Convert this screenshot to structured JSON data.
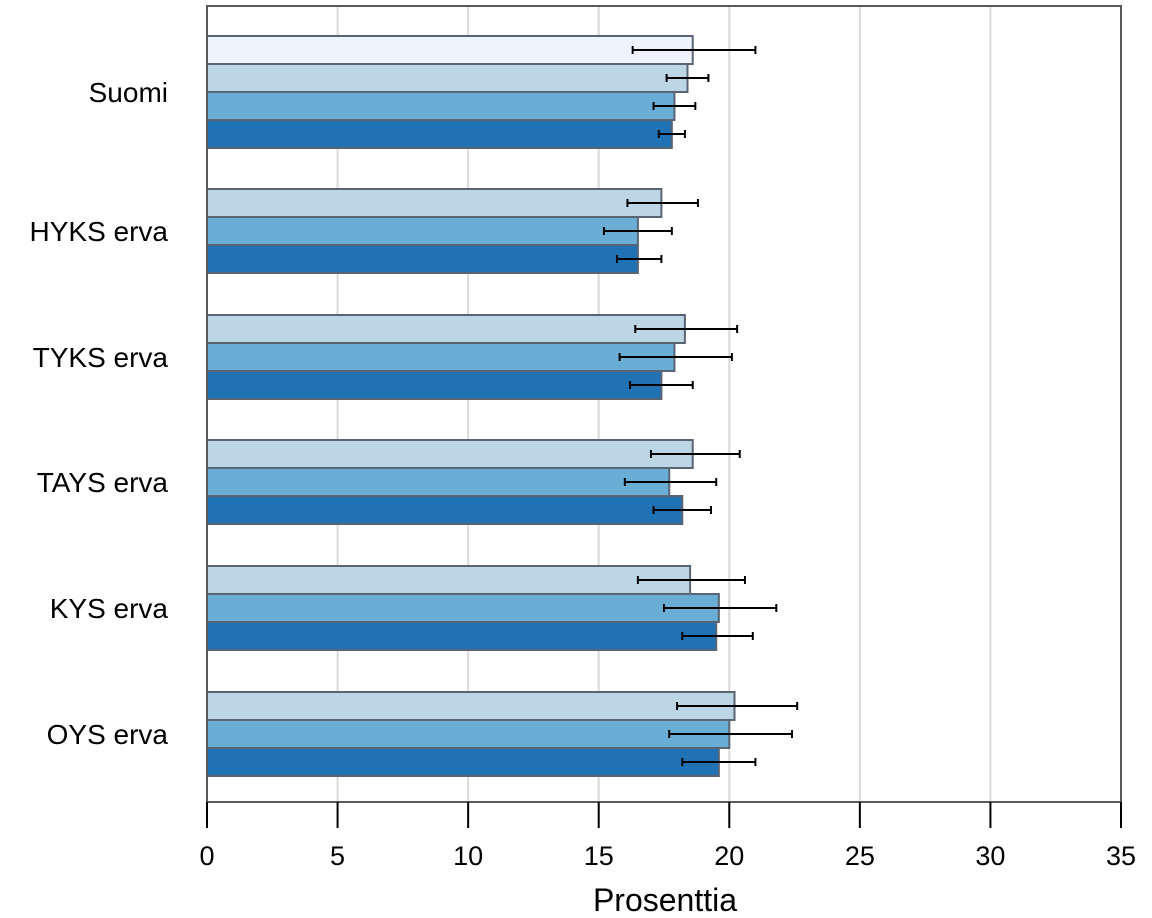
{
  "chart_data": {
    "type": "bar",
    "orientation": "horizontal",
    "title": "",
    "xlabel": "Prosenttia",
    "ylabel": "",
    "xlim": [
      0,
      35
    ],
    "x_ticks": [
      0,
      5,
      10,
      15,
      20,
      25,
      30,
      35
    ],
    "grid": "vertical",
    "legend": "none",
    "categories": [
      {
        "label": "Suomi",
        "bars": [
          {
            "value": 18.6,
            "err_low": 16.3,
            "err_high": 21.0,
            "color": "#eef3fd"
          },
          {
            "value": 18.4,
            "err_low": 17.6,
            "err_high": 19.2,
            "color": "#bcd6e6"
          },
          {
            "value": 17.9,
            "err_low": 17.1,
            "err_high": 18.7,
            "color": "#6aaed6"
          },
          {
            "value": 17.8,
            "err_low": 17.3,
            "err_high": 18.3,
            "color": "#2171b5"
          }
        ]
      },
      {
        "label": "HYKS erva",
        "bars": [
          {
            "value": 17.4,
            "err_low": 16.1,
            "err_high": 18.8,
            "color": "#bcd6e6"
          },
          {
            "value": 16.5,
            "err_low": 15.2,
            "err_high": 17.8,
            "color": "#6aaed6"
          },
          {
            "value": 16.5,
            "err_low": 15.7,
            "err_high": 17.4,
            "color": "#2171b5"
          }
        ]
      },
      {
        "label": "TYKS erva",
        "bars": [
          {
            "value": 18.3,
            "err_low": 16.4,
            "err_high": 20.3,
            "color": "#bcd6e6"
          },
          {
            "value": 17.9,
            "err_low": 15.8,
            "err_high": 20.1,
            "color": "#6aaed6"
          },
          {
            "value": 17.4,
            "err_low": 16.2,
            "err_high": 18.6,
            "color": "#2171b5"
          }
        ]
      },
      {
        "label": "TAYS erva",
        "bars": [
          {
            "value": 18.6,
            "err_low": 17.0,
            "err_high": 20.4,
            "color": "#bcd6e6"
          },
          {
            "value": 17.7,
            "err_low": 16.0,
            "err_high": 19.5,
            "color": "#6aaed6"
          },
          {
            "value": 18.2,
            "err_low": 17.1,
            "err_high": 19.3,
            "color": "#2171b5"
          }
        ]
      },
      {
        "label": "KYS erva",
        "bars": [
          {
            "value": 18.5,
            "err_low": 16.5,
            "err_high": 20.6,
            "color": "#bcd6e6"
          },
          {
            "value": 19.6,
            "err_low": 17.5,
            "err_high": 21.8,
            "color": "#6aaed6"
          },
          {
            "value": 19.5,
            "err_low": 18.2,
            "err_high": 20.9,
            "color": "#2171b5"
          }
        ]
      },
      {
        "label": "OYS erva",
        "bars": [
          {
            "value": 20.2,
            "err_low": 18.0,
            "err_high": 22.6,
            "color": "#bcd6e6"
          },
          {
            "value": 20.0,
            "err_low": 17.7,
            "err_high": 22.4,
            "color": "#6aaed6"
          },
          {
            "value": 19.6,
            "err_low": 18.2,
            "err_high": 21.0,
            "color": "#2171b5"
          }
        ]
      }
    ],
    "colors": {
      "frame": "#595959",
      "grid": "#d9d9d9",
      "bar_border": "#5a6573",
      "error_bar": "#000000"
    }
  }
}
